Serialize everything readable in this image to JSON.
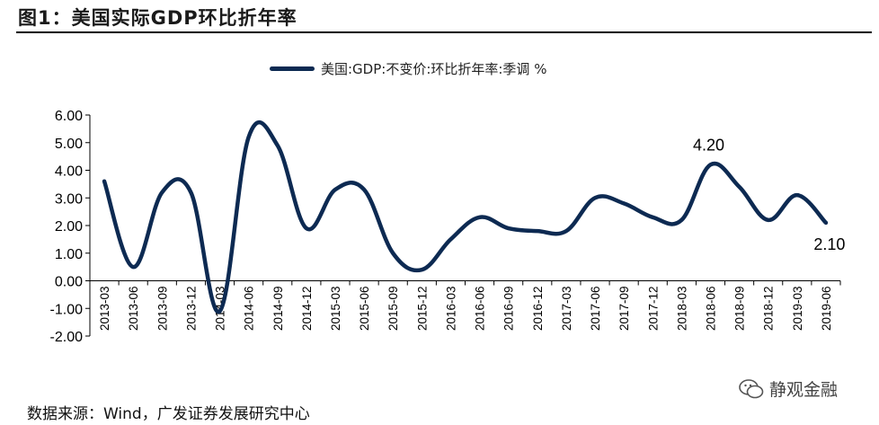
{
  "figure": {
    "title": "图1：美国实际GDP环比折年率",
    "source": "数据来源：Wind，广发证券发展研究中心",
    "watermark": "静观金融"
  },
  "chart_data": {
    "type": "line",
    "title": "",
    "legend_position": "top-center",
    "series": [
      {
        "name": "美国:GDP:不变价:环比折年率:季调 %",
        "color": "#0d2a52",
        "values": [
          3.6,
          0.5,
          3.2,
          3.2,
          -1.1,
          5.2,
          4.9,
          1.9,
          3.3,
          3.3,
          1.0,
          0.4,
          1.5,
          2.3,
          1.9,
          1.8,
          1.8,
          3.0,
          2.8,
          2.3,
          2.2,
          4.2,
          3.4,
          2.2,
          3.1,
          2.1
        ]
      }
    ],
    "categories": [
      "2013-03",
      "2013-06",
      "2013-09",
      "2013-12",
      "2014-03",
      "2014-06",
      "2014-09",
      "2014-12",
      "2015-03",
      "2015-06",
      "2015-09",
      "2015-12",
      "2016-03",
      "2016-06",
      "2016-09",
      "2016-12",
      "2017-03",
      "2017-06",
      "2017-09",
      "2017-12",
      "2018-03",
      "2018-06",
      "2018-09",
      "2018-12",
      "2019-03",
      "2019-06"
    ],
    "y_ticks": [
      "6.00",
      "5.00",
      "4.00",
      "3.00",
      "2.00",
      "1.00",
      "0.00",
      "-1.00",
      "-2.00"
    ],
    "ylim": [
      -2,
      6
    ],
    "xlabel": "",
    "ylabel": "",
    "grid": false,
    "annotations": [
      {
        "category": "2018-06",
        "text": "4.20"
      },
      {
        "category": "2019-06",
        "text": "2.10"
      }
    ]
  }
}
